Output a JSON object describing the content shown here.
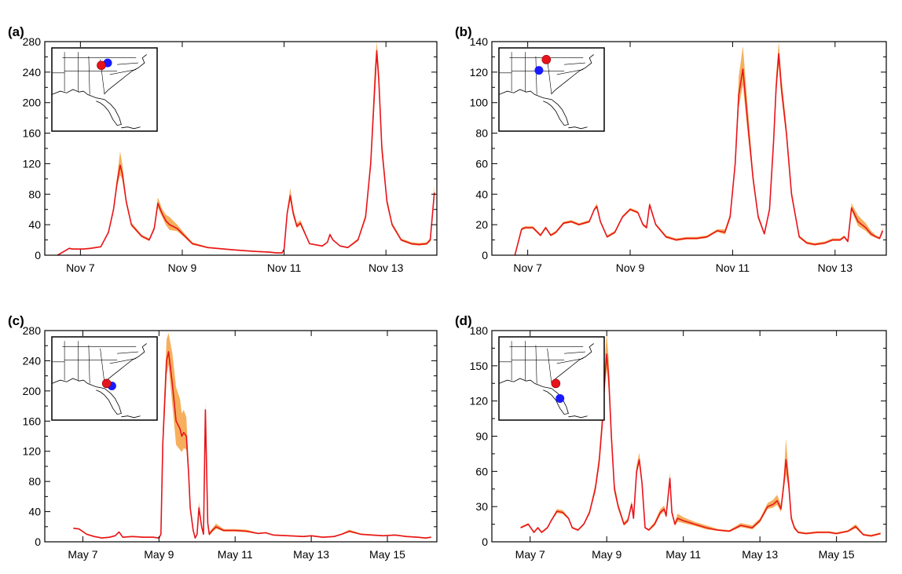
{
  "chart_data": [
    {
      "label": "(a)",
      "type": "line",
      "ylim": [
        0,
        280
      ],
      "yticks": [
        "0",
        "40",
        "80",
        "120",
        "160",
        "200",
        "240",
        "280"
      ],
      "xlim": [
        6.3,
        14.0
      ],
      "xticks": [
        {
          "x": 7,
          "label": "Nov 7"
        },
        {
          "x": 9,
          "label": "Nov 9"
        },
        {
          "x": 11,
          "label": "Nov 11"
        },
        {
          "x": 13,
          "label": "Nov 13"
        }
      ],
      "colors": {
        "line": "#e8141c",
        "band": "#f4a13f"
      },
      "inset_dots": {
        "red": [
          0.47,
          0.21
        ],
        "blue": [
          0.53,
          0.18
        ]
      },
      "series": [
        {
          "x": [
            6.55,
            6.78,
            6.85,
            6.95,
            7.05,
            7.2,
            7.4,
            7.55,
            7.65,
            7.72,
            7.78,
            7.82,
            7.9,
            8.0,
            8.2,
            8.35,
            8.45,
            8.52,
            8.6,
            8.68,
            8.75,
            8.9,
            9.05,
            9.2,
            9.5,
            10.0,
            10.4,
            10.7,
            10.85,
            10.92,
            10.96,
            11.0,
            11.06,
            11.12,
            11.18,
            11.25,
            11.32,
            11.5,
            11.75,
            11.85,
            11.9,
            11.96,
            12.1,
            12.25,
            12.45,
            12.6,
            12.7,
            12.78,
            12.82,
            12.86,
            12.92,
            13.02,
            13.12,
            13.3,
            13.5,
            13.65,
            13.8,
            13.87,
            13.95
          ],
          "y": [
            0,
            9,
            8,
            8,
            8,
            9,
            11,
            30,
            60,
            95,
            118,
            108,
            70,
            40,
            25,
            20,
            35,
            68,
            55,
            45,
            40,
            35,
            25,
            15,
            10,
            7,
            5,
            4,
            3,
            3,
            3,
            8,
            55,
            78,
            55,
            38,
            42,
            15,
            12,
            17,
            27,
            20,
            12,
            10,
            20,
            50,
            120,
            220,
            268,
            230,
            140,
            70,
            40,
            20,
            15,
            14,
            15,
            20,
            82
          ],
          "band": [
            0,
            1,
            1,
            1,
            1,
            1,
            1,
            2,
            4,
            8,
            18,
            12,
            5,
            3,
            2,
            2,
            3,
            8,
            6,
            8,
            10,
            5,
            3,
            2,
            1,
            1,
            1,
            1,
            1,
            1,
            1,
            1,
            4,
            10,
            6,
            4,
            4,
            1,
            1,
            1,
            2,
            1,
            1,
            1,
            2,
            4,
            10,
            25,
            18,
            15,
            12,
            6,
            3,
            2,
            2,
            2,
            2,
            3,
            10
          ]
        }
      ]
    },
    {
      "label": "(b)",
      "type": "line",
      "ylim": [
        0,
        140
      ],
      "yticks": [
        "0",
        "20",
        "40",
        "60",
        "80",
        "100",
        "120",
        "140"
      ],
      "xlim": [
        6.3,
        14.0
      ],
      "xticks": [
        {
          "x": 7,
          "label": "Nov 7"
        },
        {
          "x": 9,
          "label": "Nov 9"
        },
        {
          "x": 11,
          "label": "Nov 11"
        },
        {
          "x": 13,
          "label": "Nov 13"
        }
      ],
      "colors": {
        "line": "#e8141c",
        "band": "#f4a13f"
      },
      "inset_dots": {
        "red": [
          0.45,
          0.14
        ],
        "blue": [
          0.38,
          0.27
        ]
      },
      "series": [
        {
          "x": [
            6.75,
            6.88,
            6.95,
            7.1,
            7.25,
            7.35,
            7.45,
            7.55,
            7.7,
            7.85,
            8.0,
            8.2,
            8.3,
            8.35,
            8.42,
            8.55,
            8.7,
            8.85,
            9.0,
            9.15,
            9.25,
            9.32,
            9.38,
            9.5,
            9.7,
            9.9,
            10.1,
            10.3,
            10.5,
            10.7,
            10.85,
            10.95,
            11.05,
            11.12,
            11.2,
            11.3,
            11.4,
            11.5,
            11.62,
            11.72,
            11.8,
            11.85,
            11.9,
            11.95,
            12.05,
            12.15,
            12.3,
            12.45,
            12.6,
            12.8,
            12.95,
            13.1,
            13.18,
            13.25,
            13.32,
            13.45,
            13.6,
            13.7,
            13.8,
            13.87,
            13.93
          ],
          "y": [
            0,
            17,
            18,
            18,
            13,
            18,
            13,
            15,
            21,
            22,
            20,
            22,
            30,
            32,
            22,
            12,
            15,
            25,
            30,
            28,
            20,
            18,
            33,
            20,
            12,
            10,
            11,
            11,
            12,
            16,
            15,
            25,
            60,
            105,
            122,
            85,
            50,
            25,
            14,
            30,
            75,
            110,
            132,
            110,
            80,
            40,
            12,
            8,
            7,
            8,
            10,
            10,
            12,
            9,
            31,
            22,
            18,
            14,
            12,
            11,
            16
          ],
          "band": [
            0,
            1,
            1,
            1,
            1,
            1,
            1,
            1,
            1,
            1,
            1,
            1,
            1,
            2,
            1,
            1,
            1,
            1,
            1,
            1,
            1,
            1,
            2,
            1,
            1,
            1,
            1,
            1,
            1,
            1,
            2,
            2,
            3,
            12,
            15,
            10,
            4,
            2,
            1,
            2,
            4,
            8,
            10,
            8,
            5,
            3,
            1,
            1,
            1,
            1,
            1,
            1,
            1,
            1,
            3,
            4,
            3,
            2,
            1,
            1,
            2
          ]
        }
      ]
    },
    {
      "label": "(c)",
      "type": "line",
      "ylim": [
        0,
        280
      ],
      "yticks": [
        "0",
        "40",
        "80",
        "120",
        "160",
        "200",
        "240",
        "280"
      ],
      "xlim": [
        6.0,
        16.3
      ],
      "xticks": [
        {
          "x": 7,
          "label": "May 7"
        },
        {
          "x": 9,
          "label": "May 9"
        },
        {
          "x": 11,
          "label": "May 11"
        },
        {
          "x": 13,
          "label": "May 13"
        },
        {
          "x": 15,
          "label": "May 15"
        }
      ],
      "colors": {
        "line": "#e8141c",
        "band": "#f4a13f"
      },
      "inset_dots": {
        "red": [
          0.52,
          0.56
        ],
        "blue": [
          0.57,
          0.59
        ]
      },
      "series": [
        {
          "x": [
            6.75,
            6.9,
            7.1,
            7.3,
            7.5,
            7.7,
            7.85,
            7.95,
            8.05,
            8.3,
            8.6,
            8.85,
            9.0,
            9.05,
            9.1,
            9.2,
            9.25,
            9.35,
            9.45,
            9.55,
            9.6,
            9.65,
            9.72,
            9.78,
            9.82,
            9.9,
            9.95,
            10.0,
            10.05,
            10.12,
            10.17,
            10.22,
            10.28,
            10.32,
            10.4,
            10.5,
            10.7,
            11.0,
            11.3,
            11.6,
            11.8,
            12.0,
            12.4,
            12.8,
            13.0,
            13.3,
            13.6,
            13.8,
            14.0,
            14.3,
            14.6,
            14.9,
            15.2,
            15.5,
            15.8,
            16.0,
            16.15
          ],
          "y": [
            18,
            17,
            10,
            7,
            5,
            6,
            8,
            13,
            6,
            7,
            6,
            6,
            5,
            10,
            130,
            240,
            252,
            210,
            160,
            150,
            140,
            145,
            140,
            90,
            45,
            15,
            5,
            10,
            45,
            20,
            10,
            175,
            25,
            10,
            15,
            20,
            15,
            15,
            14,
            11,
            12,
            9,
            8,
            7,
            8,
            6,
            7,
            10,
            14,
            10,
            9,
            8,
            9,
            7,
            6,
            5,
            6
          ],
          "band": [
            1,
            1,
            1,
            1,
            1,
            1,
            1,
            1,
            1,
            1,
            1,
            1,
            1,
            2,
            20,
            28,
            25,
            40,
            45,
            40,
            30,
            30,
            25,
            12,
            6,
            3,
            1,
            2,
            8,
            4,
            2,
            10,
            6,
            3,
            3,
            4,
            2,
            2,
            2,
            1,
            1,
            1,
            1,
            1,
            1,
            1,
            1,
            1,
            2,
            1,
            1,
            1,
            1,
            1,
            1,
            1,
            1
          ]
        }
      ]
    },
    {
      "label": "(d)",
      "type": "line",
      "ylim": [
        0,
        180
      ],
      "yticks": [
        "0",
        "30",
        "60",
        "90",
        "120",
        "150",
        "180"
      ],
      "xlim": [
        6.0,
        16.3
      ],
      "xticks": [
        {
          "x": 7,
          "label": "May 7"
        },
        {
          "x": 9,
          "label": "May 9"
        },
        {
          "x": 11,
          "label": "May 11"
        },
        {
          "x": 13,
          "label": "May 13"
        },
        {
          "x": 15,
          "label": "May 15"
        }
      ],
      "colors": {
        "line": "#e8141c",
        "band": "#f4a13f"
      },
      "inset_dots": {
        "red": [
          0.54,
          0.56
        ],
        "blue": [
          0.58,
          0.74
        ]
      },
      "series": [
        {
          "x": [
            6.75,
            6.95,
            7.1,
            7.2,
            7.3,
            7.45,
            7.55,
            7.7,
            7.85,
            8.0,
            8.1,
            8.25,
            8.4,
            8.55,
            8.7,
            8.8,
            8.88,
            8.95,
            9.0,
            9.05,
            9.12,
            9.2,
            9.3,
            9.45,
            9.55,
            9.65,
            9.7,
            9.78,
            9.85,
            9.92,
            10.0,
            10.1,
            10.25,
            10.4,
            10.5,
            10.55,
            10.6,
            10.65,
            10.7,
            10.78,
            10.85,
            11.0,
            11.3,
            11.6,
            11.9,
            12.2,
            12.5,
            12.8,
            13.0,
            13.2,
            13.35,
            13.45,
            13.55,
            13.62,
            13.68,
            13.75,
            13.82,
            13.9,
            14.0,
            14.2,
            14.5,
            14.8,
            15.0,
            15.3,
            15.5,
            15.7,
            15.9,
            16.15
          ],
          "y": [
            12,
            15,
            8,
            12,
            8,
            12,
            18,
            26,
            25,
            20,
            12,
            10,
            15,
            25,
            45,
            68,
            100,
            140,
            160,
            140,
            90,
            45,
            30,
            15,
            18,
            32,
            20,
            60,
            70,
            50,
            12,
            10,
            15,
            25,
            28,
            22,
            38,
            54,
            25,
            15,
            20,
            18,
            15,
            12,
            10,
            9,
            14,
            12,
            18,
            30,
            32,
            35,
            28,
            48,
            70,
            50,
            20,
            12,
            8,
            7,
            8,
            8,
            7,
            9,
            13,
            6,
            5,
            7
          ],
          "band": [
            1,
            1,
            1,
            1,
            1,
            1,
            1,
            2,
            2,
            1,
            1,
            1,
            1,
            2,
            4,
            6,
            10,
            15,
            18,
            15,
            10,
            5,
            3,
            2,
            2,
            3,
            2,
            5,
            6,
            4,
            1,
            1,
            2,
            3,
            3,
            2,
            4,
            5,
            3,
            2,
            4,
            3,
            2,
            2,
            1,
            1,
            2,
            2,
            2,
            3,
            4,
            5,
            4,
            6,
            18,
            8,
            3,
            2,
            1,
            1,
            1,
            1,
            1,
            1,
            2,
            1,
            1,
            1
          ]
        }
      ]
    }
  ]
}
